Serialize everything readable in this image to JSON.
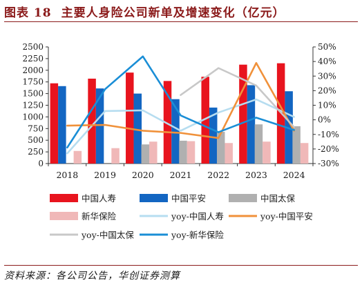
{
  "header": {
    "label": "图表 18",
    "title": "主要人身险公司新单及增速变化（亿元）"
  },
  "source": "资料来源：各公司公告，华创证券测算",
  "chart_data": {
    "type": "bar",
    "categories": [
      "2018",
      "2019",
      "2020",
      "2021",
      "2022",
      "2023",
      "2024"
    ],
    "left_axis": {
      "min": 0,
      "max": 2500,
      "step": 250,
      "tick_labels": [
        "0",
        "250",
        "500",
        "750",
        "1000",
        "1250",
        "1500",
        "1750",
        "2000",
        "2250",
        "2500"
      ]
    },
    "right_axis": {
      "min": -30,
      "max": 50,
      "step": 10,
      "tick_labels": [
        "-30%",
        "-20%",
        "-10%",
        "0%",
        "10%",
        "20%",
        "30%",
        "40%",
        "50%"
      ]
    },
    "bar_series": [
      {
        "name": "中国人寿",
        "color": "#E8141E",
        "values": [
          1720,
          1820,
          1950,
          1770,
          1860,
          2120,
          2150
        ]
      },
      {
        "name": "中国平安",
        "color": "#1366C2",
        "values": [
          1660,
          1610,
          1500,
          1380,
          1200,
          1680,
          1550
        ]
      },
      {
        "name": "中国太保",
        "color": "#B0B0B0",
        "values": [
          null,
          null,
          410,
          490,
          680,
          840,
          800
        ]
      },
      {
        "name": "新华保险",
        "color": "#F0B8B8",
        "values": [
          270,
          330,
          470,
          480,
          440,
          470,
          440
        ]
      }
    ],
    "line_series": [
      {
        "name": "yoy-中国人寿",
        "color": "#B6DDF0",
        "values": [
          -23,
          6,
          6.5,
          -7.5,
          5,
          14,
          2
        ]
      },
      {
        "name": "yoy-中国平安",
        "color": "#F0913A",
        "values": [
          -4,
          -3.5,
          -7.5,
          -9,
          -12.5,
          39,
          -7.5
        ]
      },
      {
        "name": "yoy-中国太保",
        "color": "#C8C8C8",
        "values": [
          null,
          null,
          null,
          17,
          35.5,
          23.5,
          -5
        ]
      },
      {
        "name": "yoy-新华保险",
        "color": "#1A8ED6",
        "values": [
          -19,
          21,
          43.5,
          3,
          -8.5,
          1.5,
          -7
        ]
      }
    ],
    "legend_placement": "bottom",
    "grid": false
  }
}
